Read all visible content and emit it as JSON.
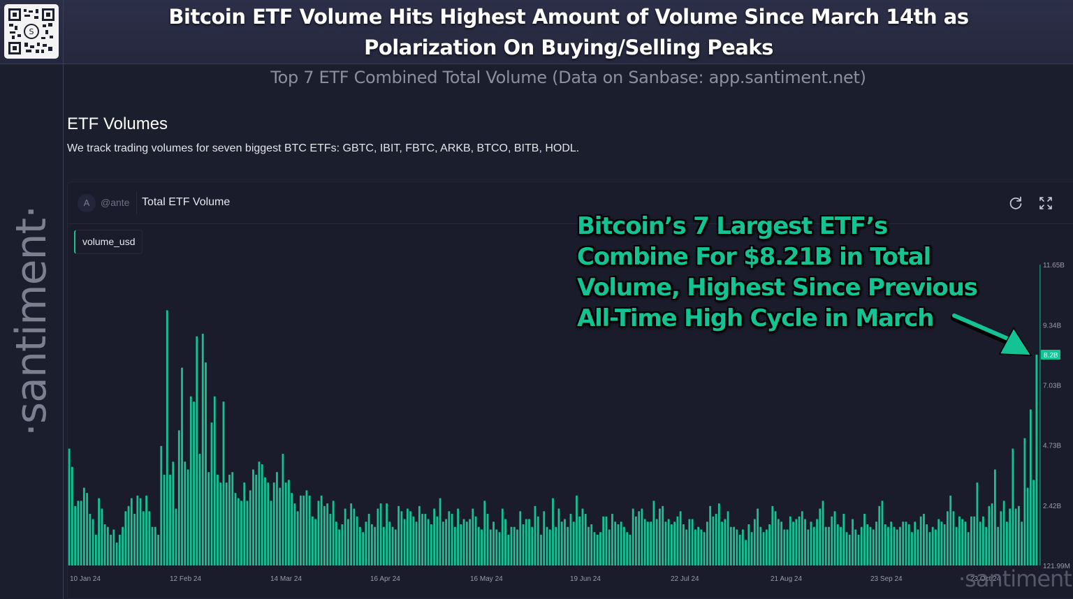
{
  "header": {
    "title_line1": "Bitcoin ETF Volume Hits Highest Amount of Volume Since March 14th as",
    "title_line2": "Polarization On Buying/Selling Peaks",
    "subtitle": "Top 7 ETF Combined Total Volume (Data on Sanbase: app.santiment.net)",
    "qr_icon": "qr-code-icon"
  },
  "sidebar": {
    "brand": "·santiment·"
  },
  "section": {
    "title": "ETF Volumes",
    "description": "We track trading volumes for seven biggest BTC ETFs: GBTC, IBIT, FBTC, ARKB, BTCO, BITB, HODL."
  },
  "card": {
    "avatar_letter": "A",
    "author": "@ante",
    "chart_name": "Total ETF Volume",
    "metric_label": "volume_usd",
    "refresh_icon": "refresh-icon",
    "fullscreen_icon": "fullscreen-icon"
  },
  "annotation": {
    "lines": [
      "Bitcoin’s 7 Largest ETF’s",
      "Combine For $8.21B in Total",
      "Volume, Highest Since Previous",
      "All-Time High Cycle in March"
    ]
  },
  "watermark": "·santiment·",
  "colors": {
    "bar": "#14c393",
    "background": "#1a1c2b",
    "accent": "#14c393"
  },
  "chart_data": {
    "type": "bar",
    "title": "Total ETF Volume",
    "series": [
      {
        "name": "volume_usd",
        "unit": "USD (billions)"
      }
    ],
    "x_start": "10 Jan 24",
    "x_end": "29 Oct 24",
    "x_tick_labels": [
      "10 Jan 24",
      "12 Feb 24",
      "14 Mar 24",
      "16 Apr 24",
      "16 May 24",
      "19 Jun 24",
      "22 Jul 24",
      "21 Aug 24",
      "23 Sep 24",
      "23 Oct 24"
    ],
    "y_tick_labels": [
      "121.99M",
      "2.42B",
      "4.73B",
      "7.03B",
      "9.34B",
      "11.65B"
    ],
    "y_tick_values": [
      0.122,
      2.42,
      4.73,
      7.03,
      9.34,
      11.65
    ],
    "ylim": [
      0.122,
      11.65
    ],
    "last_value_label": "8.2B",
    "last_value": 8.2,
    "values_are_estimated": true,
    "grid": false,
    "values": [
      4.6,
      3.9,
      2.4,
      2.6,
      2.6,
      3.1,
      2.9,
      2.1,
      1.9,
      1.3,
      2.7,
      2.3,
      1.7,
      1.6,
      1.3,
      1.5,
      1.0,
      1.3,
      1.6,
      2.2,
      2.4,
      2.7,
      2.1,
      2.8,
      2.7,
      2.2,
      2.8,
      2.2,
      1.6,
      1.6,
      1.3,
      4.7,
      3.6,
      9.9,
      3.6,
      4.1,
      2.3,
      5.3,
      7.7,
      4.1,
      3.8,
      6.6,
      6.4,
      8.9,
      4.4,
      9.0,
      7.9,
      3.7,
      5.6,
      6.6,
      3.6,
      3.3,
      6.4,
      3.3,
      3.6,
      3.7,
      2.9,
      2.7,
      2.6,
      3.3,
      2.6,
      3.0,
      3.8,
      3.6,
      4.1,
      4.0,
      3.5,
      3.3,
      2.6,
      3.3,
      3.7,
      3.1,
      4.4,
      3.3,
      3.4,
      2.9,
      2.5,
      2.2,
      2.8,
      2.8,
      3.0,
      2.8,
      2.0,
      1.9,
      2.6,
      2.8,
      2.4,
      2.5,
      2.1,
      2.6,
      1.8,
      1.5,
      1.7,
      2.3,
      1.9,
      2.5,
      2.3,
      2.0,
      1.6,
      1.4,
      1.8,
      2.1,
      1.7,
      1.6,
      2.3,
      2.5,
      1.6,
      2.5,
      1.8,
      1.6,
      1.5,
      2.4,
      2.2,
      1.9,
      2.3,
      2.2,
      2.0,
      1.8,
      2.4,
      2.1,
      2.1,
      1.9,
      1.7,
      2.3,
      2.0,
      2.7,
      1.8,
      1.9,
      2.2,
      2.1,
      1.6,
      2.3,
      1.7,
      1.9,
      1.8,
      1.9,
      2.3,
      2.0,
      1.6,
      1.5,
      2.6,
      2.1,
      1.5,
      1.8,
      1.5,
      1.4,
      2.3,
      1.9,
      1.3,
      1.6,
      1.6,
      1.5,
      2.2,
      1.7,
      1.9,
      1.9,
      1.6,
      2.4,
      2.0,
      1.3,
      2.2,
      1.6,
      1.5,
      2.7,
      1.6,
      2.3,
      1.8,
      1.9,
      1.6,
      2.1,
      1.8,
      2.8,
      2.0,
      2.3,
      2.1,
      1.6,
      1.7,
      1.4,
      1.3,
      1.4,
      2.0,
      2.0,
      1.5,
      2.1,
      1.8,
      1.7,
      1.8,
      1.6,
      1.4,
      1.3,
      2.3,
      2.0,
      2.2,
      2.3,
      1.9,
      1.8,
      1.8,
      2.6,
      1.9,
      2.3,
      2.4,
      1.8,
      1.9,
      1.7,
      1.8,
      2.0,
      2.2,
      1.7,
      1.5,
      1.9,
      1.9,
      1.5,
      1.6,
      1.5,
      1.4,
      1.8,
      2.4,
      2.0,
      2.1,
      2.5,
      1.8,
      1.9,
      2.2,
      1.6,
      1.6,
      1.5,
      1.3,
      1.5,
      1.1,
      1.7,
      1.4,
      1.9,
      2.3,
      1.6,
      1.4,
      1.5,
      1.7,
      2.4,
      2.2,
      1.9,
      1.8,
      1.5,
      1.5,
      2.0,
      1.8,
      1.9,
      2.0,
      2.2,
      1.9,
      1.5,
      1.8,
      1.6,
      1.9,
      2.3,
      2.6,
      1.6,
      1.6,
      2.0,
      2.2,
      1.7,
      1.6,
      2.1,
      1.4,
      1.3,
      1.9,
      1.5,
      1.3,
      1.6,
      2.1,
      1.7,
      1.6,
      1.5,
      1.8,
      2.4,
      2.6,
      1.7,
      1.6,
      1.8,
      1.6,
      1.5,
      1.6,
      1.8,
      1.8,
      1.7,
      1.4,
      1.8,
      1.5,
      2.0,
      2.1,
      1.7,
      1.4,
      1.6,
      1.5,
      1.9,
      1.8,
      1.7,
      2.2,
      2.8,
      2.2,
      1.6,
      2.0,
      1.9,
      1.8,
      1.4,
      2.0,
      2.0,
      3.3,
      1.8,
      2.0,
      1.6,
      2.4,
      2.5,
      3.8,
      1.6,
      2.2,
      2.6,
      1.8,
      2.3,
      4.6,
      2.3,
      2.4,
      1.8,
      5.0,
      3.1,
      6.1,
      3.4,
      8.2
    ]
  }
}
